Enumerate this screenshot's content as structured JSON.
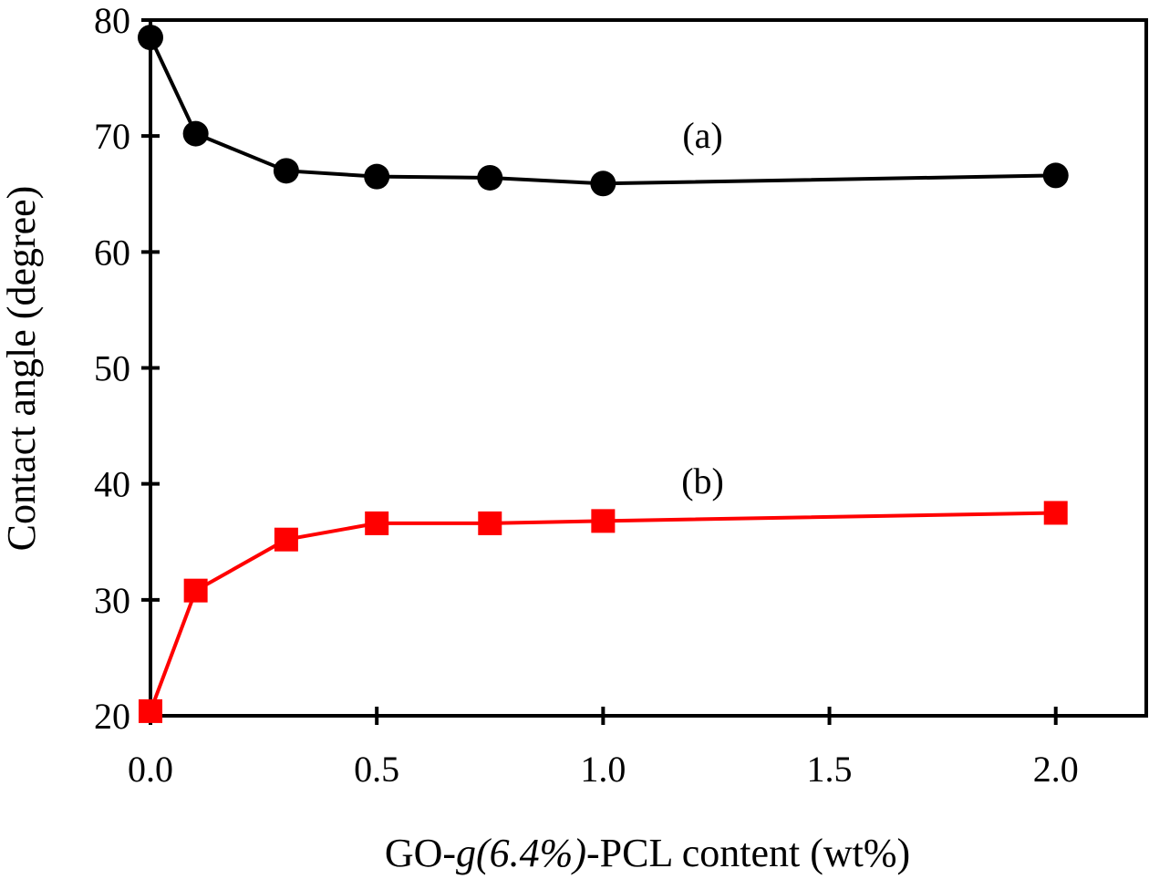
{
  "chart_data": {
    "type": "line",
    "title": "",
    "xlabel_parts": [
      "GO-",
      "g",
      "(6.4%)",
      "-PCL content (wt%)"
    ],
    "xlabel": "GO-g(6.4%)-PCL content (wt%)",
    "ylabel": "Contact angle (degree)",
    "xlim": [
      0,
      2.2
    ],
    "ylim": [
      20,
      80
    ],
    "xticks": [
      0.0,
      0.5,
      1.0,
      1.5,
      2.0
    ],
    "xtick_labels": [
      "0.0",
      "0.5",
      "1.0",
      "1.5",
      "2.0"
    ],
    "yticks": [
      20,
      30,
      40,
      50,
      60,
      70,
      80
    ],
    "ytick_labels": [
      "20",
      "30",
      "40",
      "50",
      "60",
      "70",
      "80"
    ],
    "grid": false,
    "x": [
      0,
      0.1,
      0.3,
      0.5,
      0.75,
      1.0,
      2.0
    ],
    "series": [
      {
        "name": "(a)",
        "color": "#000000",
        "marker": "circle",
        "values": [
          78.5,
          70.2,
          67.0,
          66.5,
          66.4,
          65.9,
          66.6
        ],
        "label_at": [
          1.22,
          69.0
        ]
      },
      {
        "name": "(b)",
        "color": "#ff0000",
        "marker": "square",
        "values": [
          20.4,
          30.8,
          35.2,
          36.6,
          36.6,
          36.8,
          37.5
        ],
        "label_at": [
          1.22,
          39.2
        ]
      }
    ]
  }
}
